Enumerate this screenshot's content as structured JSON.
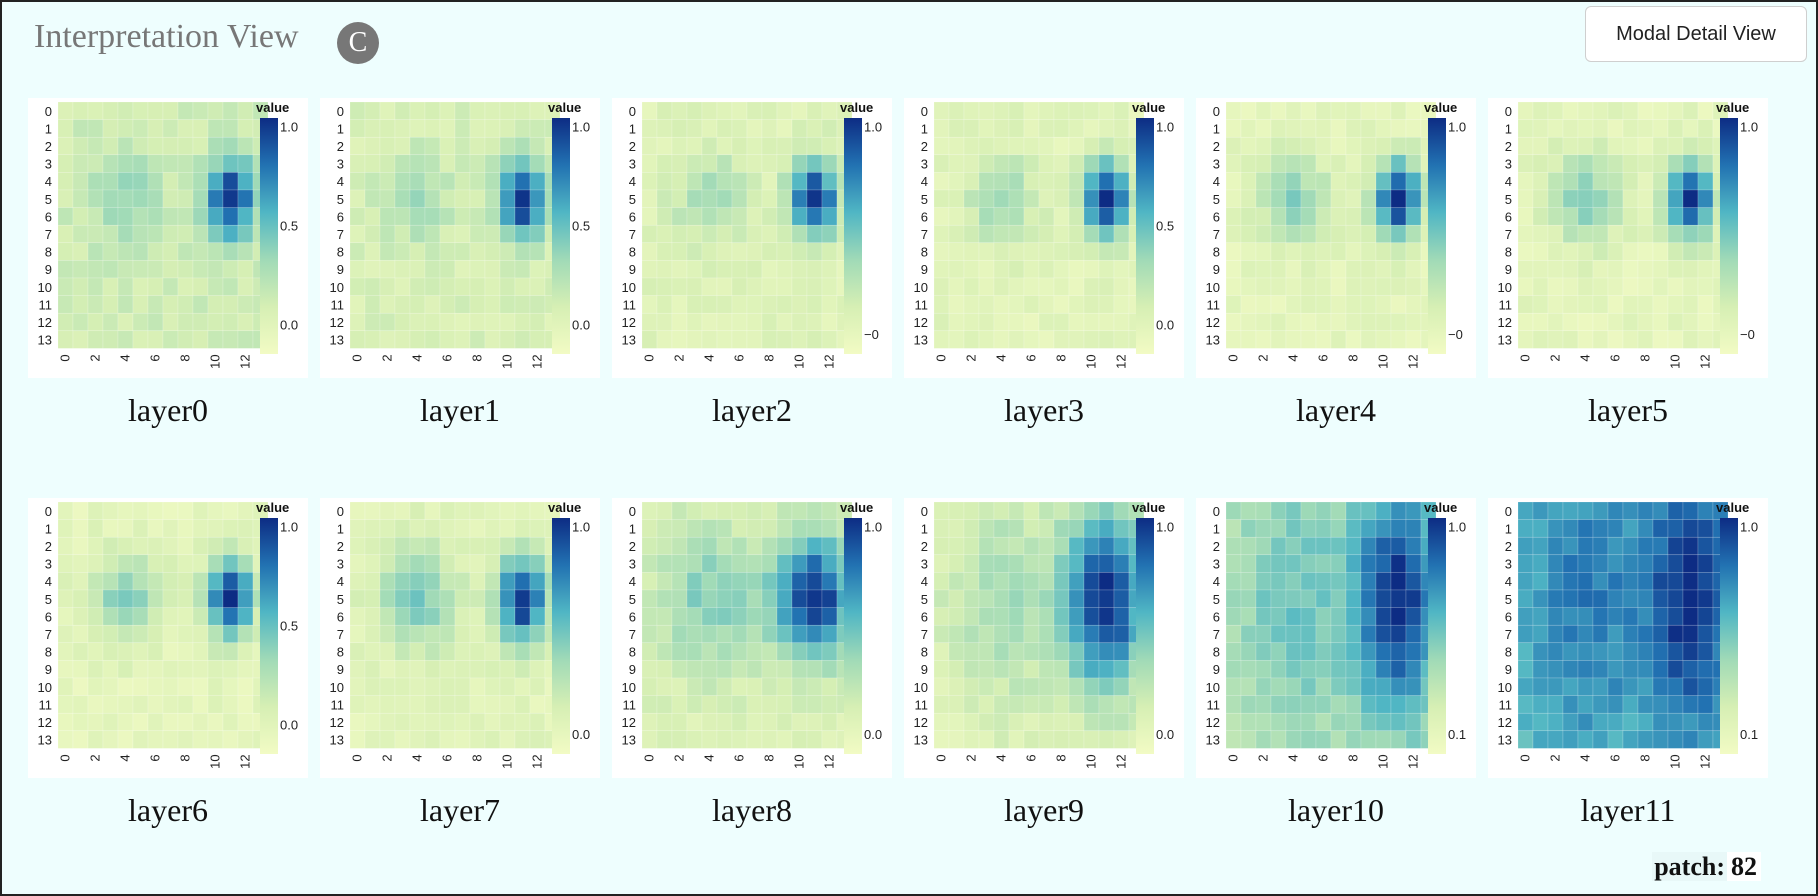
{
  "header": {
    "title": "Interpretation View",
    "badge": "C",
    "modal_button_label": "Modal Detail View"
  },
  "footer": {
    "patch_label": "patch:",
    "patch_value": "82"
  },
  "colors": {
    "background": "#eefefe",
    "scale_low": "#f2fbc4",
    "scale_mid": "#48b5c4",
    "scale_high": "#0d2c84"
  },
  "chart_data": {
    "type": "heatmap",
    "grid_size": 14,
    "x_tick_labels": [
      "0",
      "2",
      "4",
      "6",
      "8",
      "10",
      "12"
    ],
    "y_tick_labels": [
      "0",
      "1",
      "2",
      "3",
      "4",
      "5",
      "6",
      "7",
      "8",
      "9",
      "10",
      "11",
      "12",
      "13"
    ],
    "legend_title": "value",
    "layers": [
      {
        "name": "layer0",
        "legend_ticks": [
          "1.0",
          "0.5",
          "0.0"
        ],
        "left_hot": 0.45,
        "right_hot": 1.0,
        "bg": 0.22,
        "spread": 1.0
      },
      {
        "name": "layer1",
        "legend_ticks": [
          "1.0",
          "0.5",
          "0.0"
        ],
        "left_hot": 0.4,
        "right_hot": 1.0,
        "bg": 0.18,
        "spread": 1.0
      },
      {
        "name": "layer2",
        "legend_ticks": [
          "1.0",
          "−0"
        ],
        "left_hot": 0.42,
        "right_hot": 1.0,
        "bg": 0.14,
        "spread": 1.0
      },
      {
        "name": "layer3",
        "legend_ticks": [
          "1.0",
          "0.5",
          "0.0"
        ],
        "left_hot": 0.42,
        "right_hot": 1.0,
        "bg": 0.12,
        "spread": 1.0
      },
      {
        "name": "layer4",
        "legend_ticks": [
          "1.0",
          "−0"
        ],
        "left_hot": 0.48,
        "right_hot": 1.0,
        "bg": 0.1,
        "spread": 1.0
      },
      {
        "name": "layer5",
        "legend_ticks": [
          "1.0",
          "−0"
        ],
        "left_hot": 0.5,
        "right_hot": 1.0,
        "bg": 0.1,
        "spread": 1.0
      },
      {
        "name": "layer6",
        "legend_ticks": [
          "1.0",
          "0.5",
          "0.0"
        ],
        "left_hot": 0.5,
        "right_hot": 1.0,
        "bg": 0.1,
        "spread": 1.0
      },
      {
        "name": "layer7",
        "legend_ticks": [
          "1.0",
          "0.0"
        ],
        "left_hot": 0.55,
        "right_hot": 1.0,
        "bg": 0.12,
        "spread": 1.1
      },
      {
        "name": "layer8",
        "legend_ticks": [
          "1.0",
          "0.0"
        ],
        "left_hot": 0.5,
        "right_hot": 1.0,
        "bg": 0.15,
        "spread": 1.6
      },
      {
        "name": "layer9",
        "legend_ticks": [
          "1.0",
          "0.0"
        ],
        "left_hot": 0.4,
        "right_hot": 1.0,
        "bg": 0.12,
        "spread": 2.4
      },
      {
        "name": "layer10",
        "legend_ticks": [
          "1.0",
          "0.1"
        ],
        "left_hot": 0.55,
        "right_hot": 1.0,
        "bg": 0.3,
        "spread": 3.0
      },
      {
        "name": "layer11",
        "legend_ticks": [
          "1.0",
          "0.1"
        ],
        "left_hot": 0.8,
        "right_hot": 1.0,
        "bg": 0.55,
        "spread": 3.4
      }
    ]
  }
}
